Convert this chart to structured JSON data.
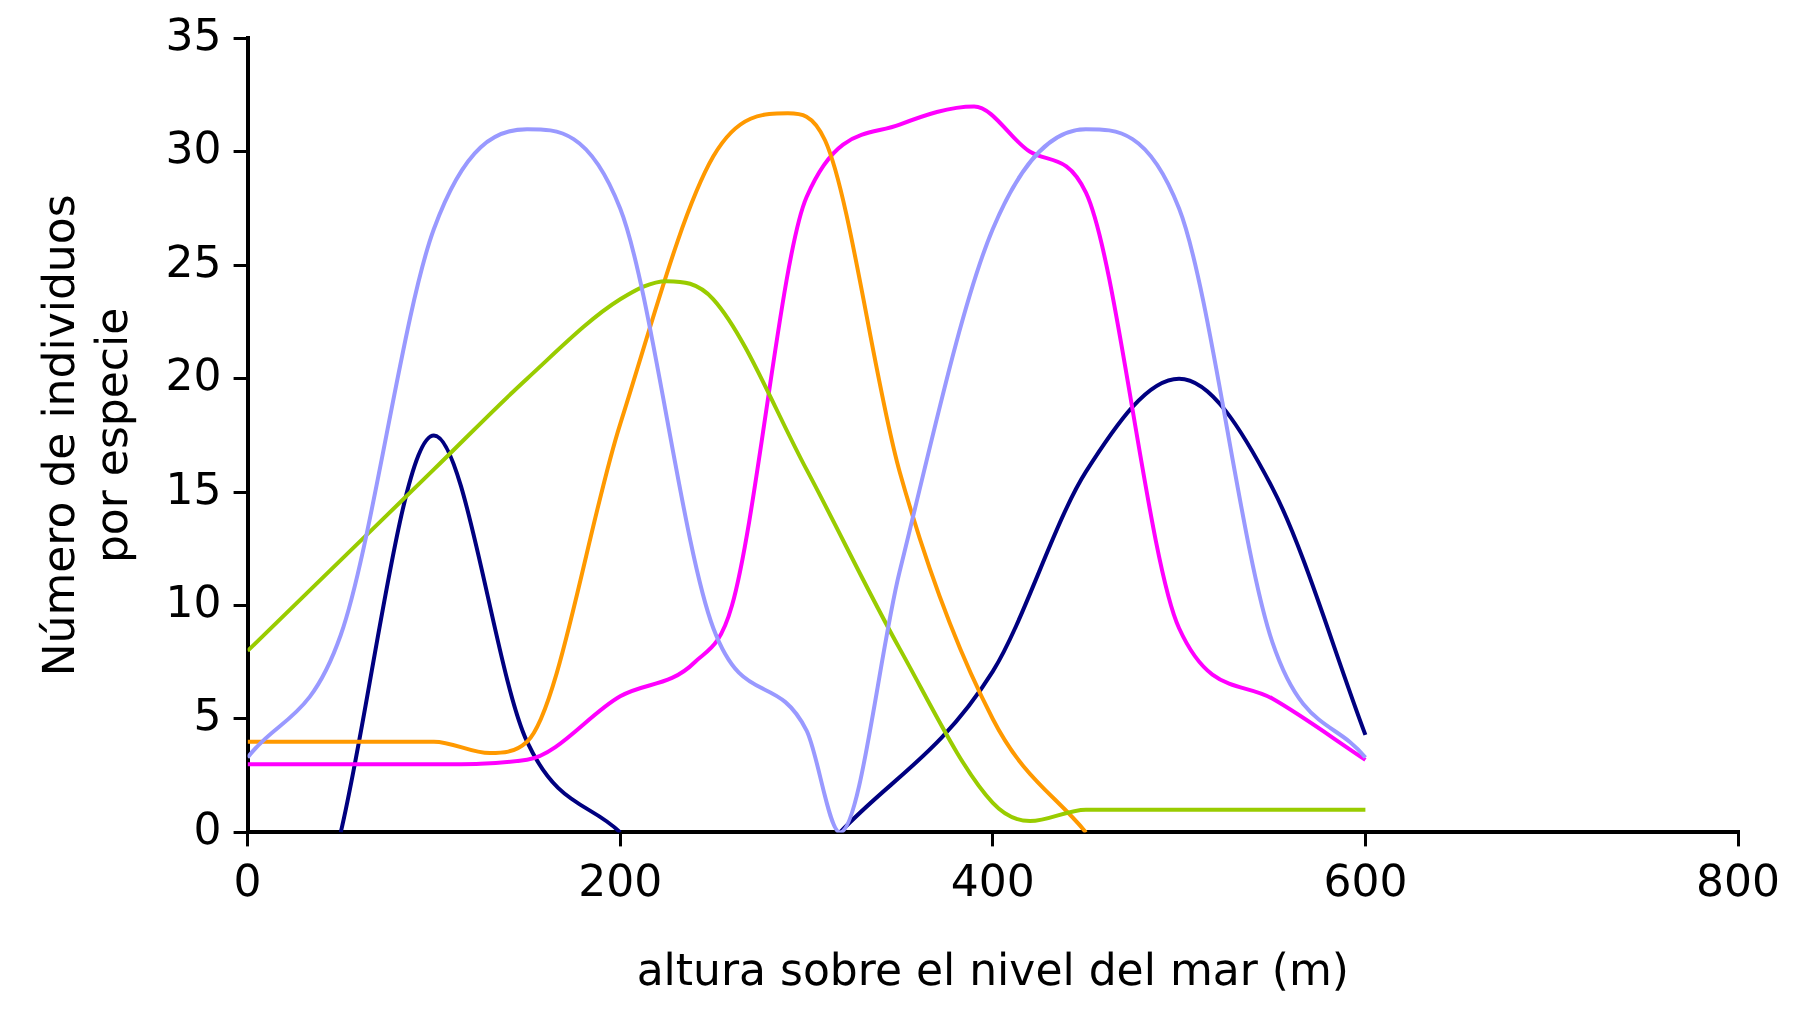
{
  "chart_data": {
    "type": "line",
    "xlabel": "altura sobre el nivel del mar (m)",
    "ylabel": "Número de individuos por especie",
    "xlim": [
      0,
      800
    ],
    "xticks": [
      0,
      200,
      400,
      600,
      800
    ],
    "ylim": [
      0,
      35
    ],
    "yticks": [
      0,
      5,
      10,
      15,
      20,
      25,
      30,
      35
    ],
    "grid": false,
    "legend": false,
    "marker": "none",
    "line_style": "solid",
    "series": [
      {
        "color": "#9999ff",
        "x": [
          0,
          50,
          100,
          150,
          200,
          250,
          300,
          318,
          350,
          400,
          450,
          500,
          550,
          600
        ],
        "values": [
          3.3,
          8.7,
          26.6,
          31,
          27.5,
          9,
          4.5,
          0,
          11.5,
          26.6,
          31,
          27.5,
          8.4,
          3.3
        ]
      },
      {
        "color": "#99cc00",
        "x": [
          0,
          50,
          100,
          150,
          200,
          225,
          250,
          300,
          350,
          400,
          420,
          450,
          600
        ],
        "values": [
          8,
          12,
          16,
          20,
          23.5,
          24.3,
          23.5,
          16,
          8.1,
          1.3,
          0.5,
          1,
          1
        ]
      },
      {
        "color": "#ff9900",
        "x": [
          0,
          100,
          130,
          150,
          200,
          250,
          290,
          310,
          350,
          400,
          450
        ],
        "values": [
          4,
          4,
          3.5,
          4,
          18,
          29.8,
          31.7,
          30.5,
          15.9,
          5,
          0
        ]
      },
      {
        "color": "#ff00ff",
        "x": [
          0,
          100,
          150,
          200,
          240,
          260,
          300,
          350,
          390,
          420,
          450,
          500,
          550,
          600
        ],
        "values": [
          3,
          3,
          3.2,
          6,
          7.5,
          10,
          28,
          31.2,
          32,
          30,
          28.2,
          9,
          5.9,
          3.2
        ]
      },
      {
        "color": "#000080",
        "x": [
          50,
          100,
          150,
          200,
          250,
          318,
          400,
          450,
          500,
          550,
          600
        ],
        "values": [
          0,
          17.5,
          4,
          0,
          null,
          0,
          7.1,
          15.9,
          20,
          15.2,
          4.3
        ]
      }
    ]
  }
}
